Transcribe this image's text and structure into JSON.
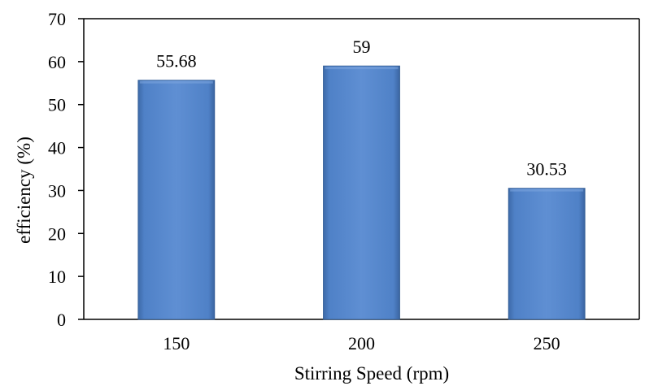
{
  "chart_data": {
    "type": "bar",
    "title": "",
    "xlabel": "Stirring Speed (rpm)",
    "ylabel": "efficiency (%)",
    "categories": [
      "150",
      "200",
      "250"
    ],
    "values": [
      55.68,
      59,
      30.53
    ],
    "data_labels": [
      "55.68",
      "59",
      "30.53"
    ],
    "ylim": [
      0,
      70
    ],
    "yticks": [
      0,
      10,
      20,
      30,
      40,
      50,
      60,
      70
    ],
    "ytick_labels": [
      "0",
      "10",
      "20",
      "30",
      "40",
      "50",
      "60",
      "70"
    ],
    "grid": false,
    "legend": "none",
    "bar_color": "#4f81bd"
  }
}
